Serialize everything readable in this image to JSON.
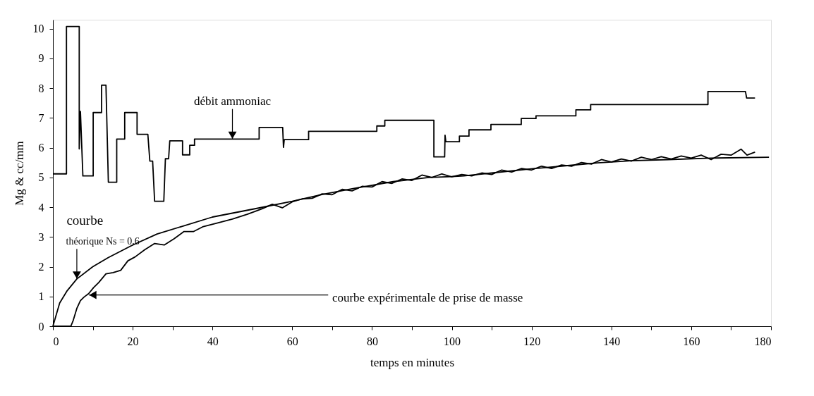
{
  "chart_data": {
    "type": "line",
    "xlabel": "temps en minutes",
    "ylabel": "Mg & cc/mm",
    "xlim": [
      0,
      180
    ],
    "xticks": [
      0,
      {
        "value": 10,
        "label": null
      },
      20,
      {
        "value": 30,
        "label": null
      },
      40,
      {
        "value": 50,
        "label": null
      },
      60,
      {
        "value": 70,
        "label": null
      },
      80,
      {
        "value": 90,
        "label": null
      },
      100,
      {
        "value": 110,
        "label": null
      },
      120,
      {
        "value": 130,
        "label": null
      },
      140,
      {
        "value": 150,
        "label": null
      },
      160,
      {
        "value": 170,
        "label": null
      },
      180
    ],
    "ylim": [
      0,
      10.3
    ],
    "yticks": [
      0,
      1,
      2,
      3,
      4,
      5,
      6,
      7,
      8,
      9,
      10
    ],
    "series": [
      {
        "color": "#000000",
        "x": [
          0,
          3.4,
          3.4,
          6.6,
          6.6,
          6.9,
          6.9,
          7.5,
          7.5,
          10.1,
          10.1,
          12.2,
          12.2,
          13.3,
          13.9,
          16,
          16,
          18,
          18,
          21.1,
          21.1,
          23.8,
          24.3,
          25,
          25.5,
          27.8,
          28.2,
          29,
          29.3,
          32.5,
          32.5,
          34.3,
          34.3,
          35.5,
          35.5,
          51.7,
          51.7,
          57.6,
          57.8,
          58,
          64.1,
          64.1,
          81.2,
          81.2,
          83.2,
          83.2,
          95.5,
          95.5,
          98.2,
          98.3,
          98.5,
          101.9,
          101.9,
          104.3,
          104.3,
          109.8,
          109.8,
          117.4,
          117.4,
          121.1,
          121.1,
          131.1,
          131.1,
          134.8,
          134.8,
          164.2,
          164.2,
          173.6,
          173.9,
          176
        ],
        "values": [
          5.12,
          5.12,
          10.07,
          10.07,
          5.96,
          7.22,
          7.22,
          5.1,
          5.05,
          5.05,
          7.18,
          7.18,
          8.1,
          8.1,
          4.84,
          4.84,
          6.29,
          6.29,
          7.18,
          7.18,
          6.45,
          6.45,
          5.55,
          5.55,
          4.2,
          4.2,
          5.63,
          5.63,
          6.23,
          6.23,
          5.76,
          5.76,
          6.08,
          6.08,
          6.29,
          6.29,
          6.68,
          6.68,
          6.01,
          6.27,
          6.27,
          6.55,
          6.55,
          6.73,
          6.73,
          6.92,
          6.92,
          5.69,
          5.69,
          6.42,
          6.2,
          6.2,
          6.39,
          6.39,
          6.6,
          6.6,
          6.78,
          6.78,
          6.98,
          6.98,
          7.07,
          7.07,
          7.27,
          7.27,
          7.45,
          7.45,
          7.89,
          7.89,
          7.67,
          7.67
        ]
      },
      {
        "color": "#000000",
        "x": [
          0,
          1.7,
          3.5,
          6,
          10,
          13.9,
          20,
          26.1,
          32.2,
          40,
          51.1,
          60,
          67.6,
          75,
          85.3,
          94.2,
          100,
          103,
          110,
          120.7,
          130,
          136.6,
          145,
          154.3,
          165,
          179.5
        ],
        "values": [
          0,
          0.78,
          1.18,
          1.59,
          2.0,
          2.31,
          2.73,
          3.1,
          3.35,
          3.67,
          3.96,
          4.2,
          4.43,
          4.62,
          4.86,
          5.0,
          5.03,
          5.05,
          5.15,
          5.3,
          5.41,
          5.49,
          5.56,
          5.6,
          5.65,
          5.68
        ]
      },
      {
        "color": "#000000",
        "x": [
          0,
          2,
          4.5,
          5.1,
          6,
          6.9,
          7.8,
          9,
          10.2,
          11.5,
          13.3,
          15.1,
          17,
          18.8,
          20.6,
          23,
          25.5,
          27.9,
          30.4,
          32.8,
          35.2,
          37.7,
          41.3,
          45,
          48.7,
          51.1,
          52.5,
          55,
          57.5,
          60,
          62.5,
          65,
          67.5,
          70,
          72.5,
          75,
          77.5,
          80,
          82.5,
          85,
          87.5,
          90,
          92.5,
          95,
          97.5,
          100,
          102.5,
          105,
          107.5,
          110,
          112.5,
          115,
          117.5,
          120,
          122.5,
          125,
          127.5,
          130,
          132.5,
          135,
          137.5,
          140,
          142.5,
          145,
          147.5,
          150,
          152.5,
          155,
          157.5,
          160,
          162.5,
          165,
          167.5,
          170,
          172.5,
          174,
          176
        ],
        "values": [
          0,
          0,
          0,
          0.2,
          0.6,
          0.86,
          0.98,
          1.1,
          1.3,
          1.47,
          1.76,
          1.8,
          1.88,
          2.2,
          2.33,
          2.57,
          2.78,
          2.73,
          2.94,
          3.18,
          3.18,
          3.35,
          3.47,
          3.6,
          3.76,
          3.88,
          3.95,
          4.1,
          3.98,
          4.18,
          4.28,
          4.3,
          4.45,
          4.42,
          4.6,
          4.55,
          4.7,
          4.68,
          4.86,
          4.8,
          4.95,
          4.9,
          5.08,
          5.0,
          5.12,
          5.02,
          5.1,
          5.05,
          5.15,
          5.1,
          5.25,
          5.18,
          5.3,
          5.25,
          5.38,
          5.3,
          5.42,
          5.38,
          5.5,
          5.45,
          5.6,
          5.52,
          5.62,
          5.55,
          5.68,
          5.6,
          5.7,
          5.62,
          5.72,
          5.65,
          5.75,
          5.6,
          5.78,
          5.75,
          5.95,
          5.75,
          5.85
        ]
      }
    ],
    "annotations": [
      {
        "text": "débit ammoniac",
        "x": 45,
        "y": 6.3
      },
      "courbe",
      {
        "text": "théorique Ns = 0,6",
        "x": 6,
        "y": 1.6
      },
      {
        "text": "courbe expérimentale de prise de masse",
        "x": 9,
        "y": 1.05
      }
    ]
  }
}
